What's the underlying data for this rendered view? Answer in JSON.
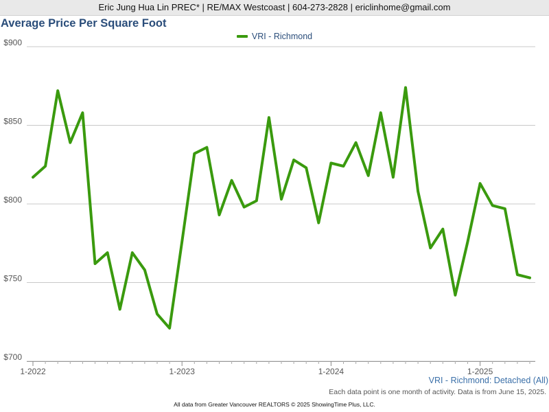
{
  "header": {
    "agent_line": "Eric Jung Hua Lin PREC* | RE/MAX Westcoast | 604-273-2828 | ericlinhome@gmail.com"
  },
  "chart": {
    "title": "Average Price Per Square Foot",
    "legend_label": "VRI - Richmond"
  },
  "footer": {
    "series_label": "VRI - Richmond: Detached (All)",
    "note": "Each data point is one month of activity. Data is from June 15, 2025.",
    "credit": "All data from Greater Vancouver REALTORS © 2025 ShowingTime Plus, LLC."
  },
  "colors": {
    "line": "#3a9a0e",
    "title": "#2a4d7a",
    "grid": "#c8c8c8"
  },
  "chart_data": {
    "type": "line",
    "title": "Average Price Per Square Foot",
    "ylim": [
      700,
      900
    ],
    "yticks": [
      700,
      750,
      800,
      850,
      900
    ],
    "ytick_labels": [
      "$700",
      "$750",
      "$800",
      "$850",
      "$900"
    ],
    "xtick_labels": [
      "1-2022",
      "1-2023",
      "1-2024",
      "1-2025"
    ],
    "xtick_indices": [
      0,
      12,
      24,
      36
    ],
    "grid": true,
    "legend_position": "top-center",
    "series": [
      {
        "name": "VRI - Richmond",
        "x": [
          "2022-01",
          "2022-02",
          "2022-03",
          "2022-04",
          "2022-05",
          "2022-06",
          "2022-07",
          "2022-08",
          "2022-09",
          "2022-10",
          "2022-11",
          "2022-12",
          "2023-01",
          "2023-02",
          "2023-03",
          "2023-04",
          "2023-05",
          "2023-06",
          "2023-07",
          "2023-08",
          "2023-09",
          "2023-10",
          "2023-11",
          "2023-12",
          "2024-01",
          "2024-02",
          "2024-03",
          "2024-04",
          "2024-05",
          "2024-06",
          "2024-07",
          "2024-08",
          "2024-09",
          "2024-10",
          "2024-11",
          "2024-12",
          "2025-01",
          "2025-02",
          "2025-03",
          "2025-04",
          "2025-05"
        ],
        "values": [
          817,
          824,
          872,
          839,
          858,
          762,
          769,
          733,
          769,
          758,
          730,
          721,
          776,
          832,
          836,
          793,
          815,
          798,
          802,
          855,
          803,
          828,
          823,
          788,
          826,
          824,
          839,
          818,
          858,
          817,
          874,
          808,
          772,
          784,
          742,
          776,
          813,
          799,
          797,
          755,
          753
        ]
      }
    ]
  }
}
